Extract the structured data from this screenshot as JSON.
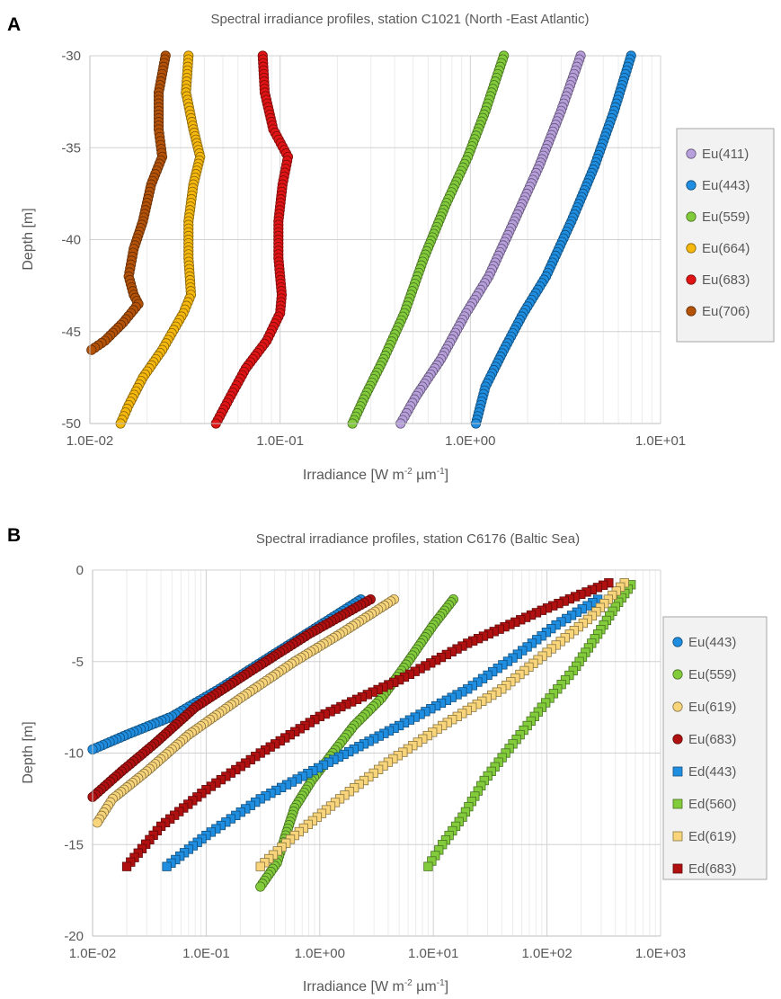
{
  "colors": {
    "violet": "#b79fdb",
    "blue": "#1f8de0",
    "green": "#82cc3c",
    "yellow": "#f6b80d",
    "red": "#e01414",
    "brown": "#b45208",
    "pale_yellow": "#f8d47a",
    "dark_red": "#b01010"
  },
  "chart_data": [
    {
      "panel": "A",
      "type": "scatter",
      "title": "Spectral irradiance profiles, station C1021 (North -East Atlantic)",
      "xlabel": "Irradiance [W m-2 µm-1]",
      "xlabel_parts": {
        "main": "Irradiance [W m",
        "sup1": "-2",
        "mid": " µm",
        "sup2": "-1",
        "end": "]"
      },
      "ylabel": "Depth [m]",
      "x_scale": "log",
      "xlim": [
        0.01,
        10
      ],
      "ylim": [
        -50,
        -30
      ],
      "x_ticks": [
        0.01,
        0.1,
        1,
        10
      ],
      "x_tick_labels": [
        "1.0E-02",
        "1.0E-01",
        "1.0E+00",
        "1.0E+01"
      ],
      "y_ticks": [
        -30,
        -35,
        -40,
        -45,
        -50
      ],
      "y_tick_labels": [
        "-30",
        "-35",
        "-40",
        "-45",
        "-50"
      ],
      "grid": true,
      "legend_position": "right",
      "series": [
        {
          "name": "Eu(411)",
          "marker": "circle",
          "color": "#b79fdb",
          "points": [
            [
              3.8,
              -30
            ],
            [
              3.0,
              -33
            ],
            [
              2.3,
              -36
            ],
            [
              1.7,
              -39
            ],
            [
              1.25,
              -42
            ],
            [
              0.95,
              -44
            ],
            [
              0.7,
              -46.5
            ],
            [
              0.52,
              -48.5
            ],
            [
              0.43,
              -50
            ]
          ]
        },
        {
          "name": "Eu(443)",
          "marker": "circle",
          "color": "#1f8de0",
          "points": [
            [
              7.0,
              -30
            ],
            [
              5.7,
              -33
            ],
            [
              4.5,
              -36
            ],
            [
              3.4,
              -39
            ],
            [
              2.5,
              -42
            ],
            [
              1.9,
              -44
            ],
            [
              1.5,
              -46
            ],
            [
              1.2,
              -48
            ],
            [
              1.07,
              -50
            ]
          ]
        },
        {
          "name": "Eu(559)",
          "marker": "circle",
          "color": "#82cc3c",
          "points": [
            [
              1.5,
              -30
            ],
            [
              1.2,
              -33
            ],
            [
              0.97,
              -35.5
            ],
            [
              0.75,
              -38
            ],
            [
              0.57,
              -41
            ],
            [
              0.45,
              -44
            ],
            [
              0.35,
              -46.5
            ],
            [
              0.28,
              -48.5
            ],
            [
              0.24,
              -50
            ]
          ]
        },
        {
          "name": "Eu(664)",
          "marker": "circle",
          "color": "#f6b80d",
          "points": [
            [
              0.033,
              -30
            ],
            [
              0.032,
              -32
            ],
            [
              0.035,
              -34
            ],
            [
              0.038,
              -35.5
            ],
            [
              0.035,
              -37
            ],
            [
              0.033,
              -39
            ],
            [
              0.033,
              -41
            ],
            [
              0.034,
              -43
            ],
            [
              0.031,
              -44
            ],
            [
              0.024,
              -46
            ],
            [
              0.019,
              -47.5
            ],
            [
              0.016,
              -49
            ],
            [
              0.0145,
              -50
            ]
          ]
        },
        {
          "name": "Eu(683)",
          "marker": "circle",
          "color": "#e01414",
          "points": [
            [
              0.081,
              -30
            ],
            [
              0.083,
              -32
            ],
            [
              0.092,
              -34
            ],
            [
              0.11,
              -35.5
            ],
            [
              0.103,
              -37
            ],
            [
              0.098,
              -39
            ],
            [
              0.098,
              -41
            ],
            [
              0.102,
              -43
            ],
            [
              0.1,
              -44
            ],
            [
              0.085,
              -45.5
            ],
            [
              0.066,
              -47
            ],
            [
              0.055,
              -48.5
            ],
            [
              0.046,
              -50
            ]
          ]
        },
        {
          "name": "Eu(706)",
          "marker": "circle",
          "color": "#b45208",
          "points": [
            [
              0.025,
              -30
            ],
            [
              0.023,
              -32
            ],
            [
              0.023,
              -34
            ],
            [
              0.024,
              -35.5
            ],
            [
              0.021,
              -37
            ],
            [
              0.019,
              -39
            ],
            [
              0.017,
              -40.5
            ],
            [
              0.016,
              -42
            ],
            [
              0.017,
              -43
            ],
            [
              0.018,
              -43.5
            ],
            [
              0.015,
              -44.5
            ],
            [
              0.012,
              -45.5
            ],
            [
              0.0102,
              -46
            ]
          ]
        }
      ]
    },
    {
      "panel": "B",
      "type": "scatter",
      "title": "Spectral irradiance profiles, station C6176 (Baltic Sea)",
      "xlabel": "Irradiance [W m-2 µm-1]",
      "xlabel_parts": {
        "main": "Irradiance [W m",
        "sup1": "-2",
        "mid": " µm",
        "sup2": "-1",
        "end": "]"
      },
      "ylabel": "Depth [m]",
      "x_scale": "log",
      "xlim": [
        0.01,
        1000
      ],
      "ylim": [
        -20,
        0
      ],
      "x_ticks": [
        0.01,
        0.1,
        1,
        10,
        100,
        1000
      ],
      "x_tick_labels": [
        "1.0E-02",
        "1.0E-01",
        "1.0E+00",
        "1.0E+01",
        "1.0E+02",
        "1.0E+03"
      ],
      "y_ticks": [
        0,
        -5,
        -10,
        -15,
        -20
      ],
      "y_tick_labels": [
        "0",
        "-5",
        "-10",
        "-15",
        "-20"
      ],
      "grid": true,
      "legend_position": "right",
      "series": [
        {
          "name": "Eu(443)",
          "marker": "circle",
          "color": "#1f8de0",
          "points": [
            [
              2.3,
              -1.6
            ],
            [
              0.9,
              -3.2
            ],
            [
              0.35,
              -4.8
            ],
            [
              0.13,
              -6.5
            ],
            [
              0.05,
              -8
            ],
            [
              0.02,
              -9
            ],
            [
              0.01,
              -9.8
            ]
          ]
        },
        {
          "name": "Eu(559)",
          "marker": "circle",
          "color": "#82cc3c",
          "points": [
            [
              15,
              -1.6
            ],
            [
              10,
              -3
            ],
            [
              6,
              -5
            ],
            [
              3.5,
              -7
            ],
            [
              2,
              -8.5
            ],
            [
              1.3,
              -10
            ],
            [
              0.85,
              -11.5
            ],
            [
              0.6,
              -13
            ],
            [
              0.5,
              -14.5
            ],
            [
              0.42,
              -16
            ],
            [
              0.3,
              -17.3
            ]
          ]
        },
        {
          "name": "Eu(619)",
          "marker": "circle",
          "color": "#f8d47a",
          "points": [
            [
              4.5,
              -1.6
            ],
            [
              1.5,
              -3.5
            ],
            [
              0.6,
              -5
            ],
            [
              0.2,
              -7
            ],
            [
              0.07,
              -9
            ],
            [
              0.03,
              -11
            ],
            [
              0.015,
              -12.5
            ],
            [
              0.011,
              -13.8
            ]
          ]
        },
        {
          "name": "Eu(683)",
          "marker": "circle",
          "color": "#b01010",
          "points": [
            [
              2.8,
              -1.6
            ],
            [
              0.8,
              -3.5
            ],
            [
              0.25,
              -5.5
            ],
            [
              0.08,
              -7.5
            ],
            [
              0.035,
              -9.5
            ],
            [
              0.018,
              -11
            ],
            [
              0.01,
              -12.4
            ]
          ]
        },
        {
          "name": "Ed(443)",
          "marker": "square",
          "color": "#1f8de0",
          "points": [
            [
              280,
              -1.6
            ],
            [
              120,
              -3
            ],
            [
              50,
              -4.8
            ],
            [
              20,
              -6.5
            ],
            [
              5,
              -8.5
            ],
            [
              1.2,
              -10.5
            ],
            [
              0.3,
              -12.5
            ],
            [
              0.1,
              -14.5
            ],
            [
              0.045,
              -16.2
            ]
          ]
        },
        {
          "name": "Ed(560)",
          "marker": "square",
          "color": "#82cc3c",
          "points": [
            [
              550,
              -0.8
            ],
            [
              400,
              -2
            ],
            [
              280,
              -3.5
            ],
            [
              170,
              -5.5
            ],
            [
              90,
              -7.5
            ],
            [
              50,
              -9.5
            ],
            [
              28,
              -11.5
            ],
            [
              18,
              -13.5
            ],
            [
              12,
              -15
            ],
            [
              9,
              -16.2
            ]
          ]
        },
        {
          "name": "Ed(619)",
          "marker": "square",
          "color": "#f8d47a",
          "points": [
            [
              480,
              -0.7
            ],
            [
              250,
              -2.5
            ],
            [
              100,
              -4.5
            ],
            [
              40,
              -6.5
            ],
            [
              12,
              -8.5
            ],
            [
              4,
              -10.5
            ],
            [
              1.5,
              -12.5
            ],
            [
              0.6,
              -14.5
            ],
            [
              0.3,
              -16.2
            ]
          ]
        },
        {
          "name": "Ed(683)",
          "marker": "square",
          "color": "#b01010",
          "points": [
            [
              350,
              -0.7
            ],
            [
              90,
              -2.2
            ],
            [
              20,
              -4
            ],
            [
              5,
              -6
            ],
            [
              1,
              -8
            ],
            [
              0.3,
              -10
            ],
            [
              0.1,
              -12
            ],
            [
              0.04,
              -14
            ],
            [
              0.02,
              -16.2
            ]
          ]
        }
      ]
    }
  ]
}
